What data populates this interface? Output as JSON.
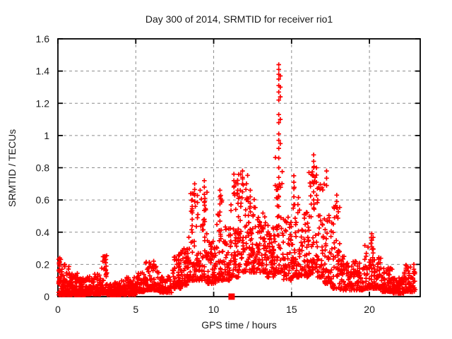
{
  "window": {
    "background_color": "#ffffff"
  },
  "chart_data": {
    "type": "scatter",
    "title": "Day 300 of 2014, SRMTID for receiver rio1",
    "xlabel": "GPS time / hours",
    "ylabel": "SRMTID / TECUs",
    "xlim": [
      0,
      23.26
    ],
    "ylim": [
      0,
      1.6
    ],
    "xticks": {
      "values": [
        0,
        5,
        10,
        15,
        20
      ],
      "labels": [
        "0",
        "5",
        "10",
        "15",
        "20"
      ]
    },
    "yticks": {
      "values": [
        0,
        0.2,
        0.4,
        0.6,
        0.8,
        1.0,
        1.2,
        1.4,
        1.6
      ],
      "labels": [
        "0",
        "0.2",
        "0.4",
        "0.6",
        "0.8",
        "1",
        "1.2",
        "1.4",
        "1.6"
      ]
    },
    "grid": {
      "style": "dashed",
      "color": "#8c8c8c"
    },
    "frame_color": "#000000",
    "legend": "none",
    "seed": 20141027,
    "series": [
      {
        "name": "SRMTID",
        "marker": "plus",
        "color": "#ff0000",
        "envelope_bins_format": "[x_start_hour, x_end_hour, n_points, y_min_TECU, y_max_TECU, low_bias_exponent]",
        "envelope_bins": [
          [
            0.03,
            0.3,
            45,
            0.01,
            0.25,
            2.6
          ],
          [
            0.3,
            0.8,
            75,
            0.01,
            0.2,
            2.8
          ],
          [
            0.8,
            1.3,
            75,
            0.01,
            0.145,
            2.4
          ],
          [
            1.3,
            1.8,
            70,
            0.01,
            0.115,
            2.2
          ],
          [
            1.8,
            2.3,
            70,
            0.015,
            0.13,
            2.2
          ],
          [
            2.3,
            2.8,
            65,
            0.015,
            0.14,
            2.2
          ],
          [
            2.8,
            3.15,
            50,
            0.02,
            0.26,
            2.8
          ],
          [
            3.15,
            3.7,
            70,
            0.01,
            0.09,
            2.0
          ],
          [
            3.7,
            4.3,
            75,
            0.01,
            0.1,
            2.0
          ],
          [
            4.3,
            5.0,
            85,
            0.012,
            0.12,
            2.2
          ],
          [
            5.0,
            5.6,
            70,
            0.03,
            0.16,
            2.2
          ],
          [
            5.6,
            6.5,
            95,
            0.04,
            0.215,
            2.4
          ],
          [
            6.5,
            7.3,
            80,
            0.025,
            0.13,
            2.0
          ],
          [
            7.3,
            7.9,
            65,
            0.05,
            0.26,
            2.2
          ],
          [
            7.9,
            8.4,
            55,
            0.07,
            0.3,
            2.0
          ],
          [
            8.4,
            9.0,
            60,
            0.1,
            0.66,
            2.2
          ],
          [
            9.0,
            9.6,
            60,
            0.1,
            0.7,
            2.4
          ],
          [
            9.6,
            10.2,
            60,
            0.08,
            0.35,
            1.8
          ],
          [
            10.2,
            10.6,
            45,
            0.1,
            0.64,
            2.2
          ],
          [
            10.6,
            11.1,
            50,
            0.1,
            0.45,
            1.8
          ],
          [
            11.1,
            11.6,
            55,
            0.12,
            0.74,
            2.0
          ],
          [
            11.6,
            12.2,
            60,
            0.15,
            0.76,
            2.0
          ],
          [
            12.2,
            12.8,
            65,
            0.15,
            0.62,
            1.7
          ],
          [
            12.8,
            13.4,
            65,
            0.15,
            0.52,
            1.5
          ],
          [
            13.4,
            13.95,
            60,
            0.12,
            0.46,
            1.6
          ],
          [
            13.95,
            14.45,
            45,
            0.15,
            0.9,
            2.2
          ],
          [
            14.45,
            15.0,
            55,
            0.1,
            0.5,
            1.8
          ],
          [
            15.0,
            15.45,
            45,
            0.12,
            0.7,
            2.0
          ],
          [
            15.45,
            16.1,
            60,
            0.12,
            0.55,
            1.8
          ],
          [
            16.1,
            16.6,
            50,
            0.14,
            0.84,
            2.1
          ],
          [
            16.6,
            17.1,
            50,
            0.12,
            0.7,
            2.1
          ],
          [
            17.1,
            17.6,
            50,
            0.08,
            0.55,
            2.0
          ],
          [
            17.6,
            18.1,
            50,
            0.05,
            0.58,
            2.3
          ],
          [
            18.1,
            18.9,
            70,
            0.04,
            0.25,
            2.0
          ],
          [
            18.9,
            19.7,
            70,
            0.04,
            0.22,
            2.0
          ],
          [
            19.7,
            20.3,
            55,
            0.05,
            0.37,
            2.3
          ],
          [
            20.3,
            20.8,
            50,
            0.05,
            0.25,
            2.0
          ],
          [
            20.8,
            21.5,
            65,
            0.03,
            0.18,
            2.0
          ],
          [
            21.5,
            22.2,
            65,
            0.02,
            0.14,
            2.0
          ],
          [
            22.2,
            22.95,
            70,
            0.03,
            0.2,
            1.9
          ]
        ],
        "spike_columns_format": "[x_hour, [y_values_TECU...]]",
        "spike_columns": [
          [
            0.12,
            [
              0.24,
              0.215,
              0.19
            ]
          ],
          [
            3.0,
            [
              0.25,
              0.22
            ]
          ],
          [
            6.15,
            [
              0.22,
              0.2
            ]
          ],
          [
            7.75,
            [
              0.26,
              0.23
            ]
          ],
          [
            8.62,
            [
              0.64,
              0.6,
              0.56,
              0.52,
              0.48,
              0.44,
              0.4
            ]
          ],
          [
            8.78,
            [
              0.7,
              0.665,
              0.63,
              0.59
            ]
          ],
          [
            9.4,
            [
              0.72,
              0.68,
              0.635,
              0.585,
              0.535,
              0.48
            ]
          ],
          [
            10.4,
            [
              0.66,
              0.62,
              0.575,
              0.525
            ]
          ],
          [
            11.3,
            [
              0.76,
              0.72,
              0.68
            ]
          ],
          [
            11.55,
            [
              0.7,
              0.66
            ]
          ],
          [
            11.85,
            [
              0.78,
              0.74,
              0.7,
              0.65
            ]
          ],
          [
            12.35,
            [
              0.66,
              0.62,
              0.58
            ]
          ],
          [
            14.18,
            [
              1.44,
              1.41,
              1.38,
              1.35,
              1.31,
              1.27,
              1.22,
              1.13,
              1.08,
              1.01,
              0.97,
              0.92,
              0.86,
              0.8,
              0.74,
              0.68,
              0.62,
              0.56,
              0.5,
              0.44,
              0.38,
              0.32
            ]
          ],
          [
            14.28,
            [
              1.37,
              1.3,
              1.24,
              1.1,
              0.95
            ]
          ],
          [
            15.15,
            [
              0.75,
              0.71,
              0.67,
              0.62,
              0.57
            ]
          ],
          [
            16.42,
            [
              0.88,
              0.84,
              0.8,
              0.75,
              0.7,
              0.65,
              0.6,
              0.55
            ]
          ],
          [
            16.6,
            [
              0.8,
              0.755,
              0.71
            ]
          ],
          [
            17.25,
            [
              0.78,
              0.735,
              0.69
            ]
          ],
          [
            17.9,
            [
              0.63,
              0.59,
              0.55,
              0.5
            ]
          ],
          [
            20.15,
            [
              0.39,
              0.35,
              0.31
            ]
          ],
          [
            22.85,
            [
              0.2,
              0.17
            ]
          ]
        ]
      }
    ],
    "event_marker": {
      "shape": "filled-square",
      "color": "#ff0000",
      "x": 11.15,
      "y": 0
    }
  }
}
